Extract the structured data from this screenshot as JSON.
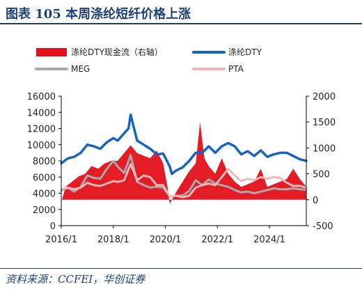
{
  "header": {
    "title": "图表 105    本周涤纶短纤价格上涨"
  },
  "footer": {
    "source": "资料来源：CCFEI，华创证券"
  },
  "chart_data": {
    "type": "line",
    "title": "",
    "x_ticks": [
      "2016/1",
      "2018/1",
      "2020/1",
      "2022/1",
      "2024/1"
    ],
    "x_range": [
      "2016-01",
      "2025-06"
    ],
    "y_left": {
      "ticks": [
        0,
        2000,
        4000,
        6000,
        8000,
        10000,
        12000,
        14000,
        16000
      ],
      "range": [
        0,
        16000
      ]
    },
    "y_right": {
      "ticks": [
        -500,
        0,
        500,
        1000,
        1500,
        2000
      ],
      "range": [
        -500,
        2000
      ]
    },
    "legend": [
      {
        "key": "spread",
        "label": "涤纶DTY现金流（右轴）",
        "color": "#e3101a",
        "style": "area"
      },
      {
        "key": "dty",
        "label": "涤纶DTY",
        "color": "#1565c0",
        "style": "line"
      },
      {
        "key": "meg",
        "label": "MEG",
        "color": "#aaaaaa",
        "style": "line"
      },
      {
        "key": "pta",
        "label": "PTA",
        "color": "#f2b8b8",
        "style": "line"
      }
    ],
    "series": [
      {
        "key": "dty",
        "name": "涤纶DTY",
        "axis": "left",
        "dates": [
          "2016-01",
          "2016-04",
          "2016-07",
          "2016-10",
          "2017-01",
          "2017-04",
          "2017-07",
          "2017-10",
          "2018-01",
          "2018-03",
          "2018-06",
          "2018-08",
          "2018-09",
          "2018-10",
          "2018-12",
          "2019-03",
          "2019-06",
          "2019-09",
          "2019-12",
          "2020-03",
          "2020-04",
          "2020-06",
          "2020-09",
          "2020-12",
          "2021-03",
          "2021-06",
          "2021-09",
          "2021-12",
          "2022-03",
          "2022-06",
          "2022-09",
          "2022-12",
          "2023-03",
          "2023-06",
          "2023-09",
          "2023-12",
          "2024-03",
          "2024-06",
          "2024-09",
          "2024-12",
          "2025-03",
          "2025-06"
        ],
        "values": [
          7700,
          8300,
          8500,
          9000,
          10000,
          9800,
          9500,
          10300,
          10800,
          10500,
          11400,
          12000,
          13700,
          12600,
          10500,
          10000,
          9500,
          8800,
          8900,
          7300,
          6400,
          6800,
          7200,
          8000,
          9000,
          9000,
          9800,
          9000,
          9800,
          10200,
          9800,
          8800,
          9200,
          8600,
          9300,
          8500,
          8800,
          9000,
          9000,
          8600,
          8200,
          8000
        ]
      },
      {
        "key": "meg",
        "name": "MEG",
        "axis": "left",
        "dates": [
          "2016-01",
          "2016-04",
          "2016-07",
          "2016-10",
          "2017-01",
          "2017-04",
          "2017-07",
          "2017-10",
          "2018-01",
          "2018-03",
          "2018-06",
          "2018-09",
          "2018-12",
          "2019-03",
          "2019-06",
          "2019-09",
          "2019-12",
          "2020-03",
          "2020-06",
          "2020-09",
          "2020-12",
          "2021-03",
          "2021-06",
          "2021-09",
          "2021-12",
          "2022-03",
          "2022-06",
          "2022-09",
          "2022-12",
          "2023-03",
          "2023-06",
          "2023-09",
          "2023-12",
          "2024-03",
          "2024-06",
          "2024-09",
          "2024-12",
          "2025-03",
          "2025-06"
        ],
        "values": [
          4300,
          4700,
          4200,
          4800,
          6200,
          5900,
          5800,
          7000,
          8000,
          7300,
          6500,
          8700,
          5400,
          5000,
          4700,
          4800,
          4700,
          3600,
          3700,
          3700,
          4300,
          5600,
          5000,
          5700,
          5200,
          5000,
          4800,
          4400,
          4100,
          4200,
          4000,
          4200,
          4400,
          4600,
          4500,
          4500,
          4600,
          4500,
          4400
        ]
      },
      {
        "key": "pta",
        "name": "PTA",
        "axis": "left",
        "dates": [
          "2016-01",
          "2016-04",
          "2016-07",
          "2016-10",
          "2017-01",
          "2017-04",
          "2017-07",
          "2017-10",
          "2018-01",
          "2018-03",
          "2018-06",
          "2018-09",
          "2018-12",
          "2019-03",
          "2019-06",
          "2019-09",
          "2019-12",
          "2020-03",
          "2020-06",
          "2020-09",
          "2020-12",
          "2021-03",
          "2021-06",
          "2021-09",
          "2021-12",
          "2022-03",
          "2022-06",
          "2022-09",
          "2022-12",
          "2023-03",
          "2023-06",
          "2023-09",
          "2023-12",
          "2024-03",
          "2024-06",
          "2024-09",
          "2024-12",
          "2025-03",
          "2025-06"
        ],
        "values": [
          4500,
          4700,
          4500,
          4700,
          5300,
          5000,
          4900,
          5200,
          5500,
          5400,
          5600,
          7600,
          5600,
          6200,
          6000,
          5000,
          5000,
          3600,
          3700,
          3500,
          3700,
          4700,
          5000,
          5200,
          5000,
          6000,
          7000,
          6200,
          5500,
          5800,
          5600,
          6000,
          5800,
          6000,
          5900,
          5300,
          4900,
          4900,
          4700
        ]
      },
      {
        "key": "spread",
        "name": "涤纶DTY现金流（右轴）",
        "axis": "right",
        "dates": [
          "2016-01",
          "2016-03",
          "2016-06",
          "2016-09",
          "2016-12",
          "2017-03",
          "2017-06",
          "2017-09",
          "2017-12",
          "2018-03",
          "2018-06",
          "2018-09",
          "2018-12",
          "2019-03",
          "2019-06",
          "2019-09",
          "2019-12",
          "2020-02",
          "2020-03",
          "2020-06",
          "2020-09",
          "2020-12",
          "2021-03",
          "2021-05",
          "2021-07",
          "2021-09",
          "2021-12",
          "2022-03",
          "2022-06",
          "2022-09",
          "2022-12",
          "2023-03",
          "2023-06",
          "2023-09",
          "2023-12",
          "2024-03",
          "2024-06",
          "2024-09",
          "2024-12",
          "2025-03",
          "2025-06"
        ],
        "values": [
          -50,
          250,
          350,
          450,
          500,
          650,
          600,
          700,
          750,
          750,
          900,
          1050,
          900,
          850,
          800,
          950,
          700,
          250,
          -80,
          150,
          350,
          550,
          700,
          1500,
          800,
          650,
          500,
          800,
          500,
          350,
          250,
          300,
          350,
          600,
          250,
          300,
          350,
          400,
          600,
          400,
          250
        ]
      }
    ]
  }
}
